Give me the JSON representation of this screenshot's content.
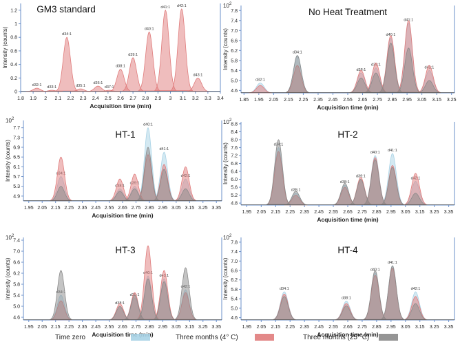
{
  "figure": {
    "legend": [
      {
        "label": "Time zero",
        "color": "#a9d3e6"
      },
      {
        "label": "Three months (4° C)",
        "color": "#e07c7c"
      },
      {
        "label": "Three months (25° C)",
        "color": "#8a8a8a"
      }
    ]
  },
  "chart_data": [
    {
      "type": "area",
      "title": "GM3 standard",
      "xlabel": "Acquisition time (min)",
      "ylabel": "Intensity (counts)",
      "yexp": "",
      "xlim": [
        1.8,
        3.4
      ],
      "ylim": [
        0,
        1.3
      ],
      "xticks": [
        "1.8",
        "1.9",
        "2",
        "2.1",
        "2.2",
        "2.3",
        "2.4",
        "2.5",
        "2.6",
        "2.7",
        "2.8",
        "2.9",
        "3",
        "3.1",
        "3.2",
        "3.3",
        "3.4"
      ],
      "yticks": [
        "0",
        "0.2",
        "0.4",
        "0.6",
        "0.8",
        "1",
        "1.2"
      ],
      "series": [
        {
          "name": "GM3 standard",
          "color": "#e07c7c",
          "peaks": [
            {
              "label": "d32:1",
              "x": 1.93,
              "y": 0.05
            },
            {
              "label": "d33:1",
              "x": 2.05,
              "y": 0.02
            },
            {
              "label": "d34:1",
              "x": 2.17,
              "y": 0.8
            },
            {
              "label": "d35:1",
              "x": 2.28,
              "y": 0.04
            },
            {
              "label": "d36:1",
              "x": 2.42,
              "y": 0.08
            },
            {
              "label": "d37:1",
              "x": 2.51,
              "y": 0.02
            },
            {
              "label": "d38:1",
              "x": 2.6,
              "y": 0.33
            },
            {
              "label": "d39:1",
              "x": 2.7,
              "y": 0.5
            },
            {
              "label": "d40:1",
              "x": 2.83,
              "y": 0.88
            },
            {
              "label": "d41:1",
              "x": 2.96,
              "y": 1.2
            },
            {
              "label": "d42:1",
              "x": 3.09,
              "y": 1.22
            },
            {
              "label": "d43:1",
              "x": 3.22,
              "y": 0.2
            }
          ]
        }
      ]
    },
    {
      "type": "area",
      "title": "No Heat Treatment",
      "xlabel": "Acquisition time (min)",
      "ylabel": "Intensity (counts)",
      "yexp": "10",
      "yexp_sup": "2",
      "xlim": [
        1.83,
        3.27
      ],
      "ylim": [
        4.5,
        8.0
      ],
      "xticks": [
        "1.85",
        "1.95",
        "2.05",
        "2.15",
        "2.25",
        "2.35",
        "2.45",
        "2.55",
        "2.65",
        "2.75",
        "2.85",
        "2.95",
        "3.05",
        "3.15",
        "3.25"
      ],
      "yticks": [
        "4.6",
        "5.0",
        "5.4",
        "5.8",
        "6.2",
        "6.6",
        "7.0",
        "7.4",
        "7.8"
      ],
      "series": [
        {
          "name": "Time zero",
          "color": "#a9d3e6",
          "peaks": [
            {
              "label": "d32:1",
              "x": 1.96,
              "y": 4.9
            },
            {
              "label": "d34:1",
              "x": 2.21,
              "y": 6.0
            },
            {
              "label": "d38:1",
              "x": 2.64,
              "y": 5.3
            },
            {
              "label": "d39:1",
              "x": 2.74,
              "y": 5.5
            },
            {
              "label": "d40:1",
              "x": 2.84,
              "y": 6.7
            },
            {
              "label": "d41:1",
              "x": 2.96,
              "y": 7.3
            },
            {
              "label": "d42:1",
              "x": 3.1,
              "y": 5.4
            }
          ]
        },
        {
          "name": "Three months (4° C)",
          "color": "#e07c7c",
          "peaks": [
            {
              "label": "",
              "x": 1.96,
              "y": 4.8
            },
            {
              "label": "",
              "x": 2.21,
              "y": 5.6
            },
            {
              "label": "",
              "x": 2.64,
              "y": 5.4
            },
            {
              "label": "",
              "x": 2.74,
              "y": 5.7
            },
            {
              "label": "",
              "x": 2.84,
              "y": 6.8
            },
            {
              "label": "",
              "x": 2.96,
              "y": 7.4
            },
            {
              "label": "",
              "x": 3.1,
              "y": 5.6
            }
          ]
        },
        {
          "name": "Three months (25° C)",
          "color": "#8a8a8a",
          "peaks": [
            {
              "label": "",
              "x": 2.21,
              "y": 6.0
            },
            {
              "label": "",
              "x": 2.64,
              "y": 5.1
            },
            {
              "label": "",
              "x": 2.74,
              "y": 5.3
            },
            {
              "label": "",
              "x": 2.84,
              "y": 6.5
            },
            {
              "label": "",
              "x": 2.96,
              "y": 6.3
            },
            {
              "label": "",
              "x": 3.1,
              "y": 5.0
            }
          ]
        }
      ]
    },
    {
      "type": "area",
      "title": "HT-1",
      "xlabel": "Acquisition time (min)",
      "ylabel": "Intensity (counts)",
      "yexp": "10",
      "yexp_sup": "2",
      "xlim": [
        1.91,
        3.39
      ],
      "ylim": [
        4.7,
        8.0
      ],
      "xticks": [
        "1.95",
        "2.05",
        "2.15",
        "2.25",
        "2.35",
        "2.45",
        "2.55",
        "2.65",
        "2.75",
        "2.85",
        "2.95",
        "3.05",
        "3.15",
        "3.25",
        "3.35"
      ],
      "yticks": [
        "4.9",
        "5.3",
        "5.7",
        "6.1",
        "6.5",
        "6.9",
        "7.3",
        "7.7"
      ],
      "series": [
        {
          "name": "Time zero",
          "color": "#a9d3e6",
          "peaks": [
            {
              "label": "d34:1",
              "x": 2.19,
              "y": 5.7
            },
            {
              "label": "d38:1",
              "x": 2.63,
              "y": 5.2
            },
            {
              "label": "d39:1",
              "x": 2.74,
              "y": 5.3
            },
            {
              "label": "d40:1",
              "x": 2.84,
              "y": 7.7
            },
            {
              "label": "d41:1",
              "x": 2.96,
              "y": 6.7
            },
            {
              "label": "d42:1",
              "x": 3.12,
              "y": 5.6
            }
          ]
        },
        {
          "name": "Three months (4° C)",
          "color": "#e07c7c",
          "peaks": [
            {
              "label": "",
              "x": 2.19,
              "y": 6.5
            },
            {
              "label": "",
              "x": 2.63,
              "y": 5.6
            },
            {
              "label": "",
              "x": 2.74,
              "y": 5.8
            },
            {
              "label": "",
              "x": 2.84,
              "y": 6.6
            },
            {
              "label": "",
              "x": 2.96,
              "y": 6.2
            },
            {
              "label": "",
              "x": 3.12,
              "y": 6.1
            }
          ]
        },
        {
          "name": "Three months (25° C)",
          "color": "#8a8a8a",
          "peaks": [
            {
              "label": "",
              "x": 2.19,
              "y": 5.3
            },
            {
              "label": "",
              "x": 2.63,
              "y": 5.1
            },
            {
              "label": "",
              "x": 2.74,
              "y": 5.2
            },
            {
              "label": "",
              "x": 2.84,
              "y": 6.9
            },
            {
              "label": "",
              "x": 2.96,
              "y": 6.0
            },
            {
              "label": "",
              "x": 3.12,
              "y": 5.2
            }
          ]
        }
      ]
    },
    {
      "type": "area",
      "title": "HT-2",
      "xlabel": "Acquisition time (min)",
      "ylabel": "Intensity (counts)",
      "yexp": "10",
      "yexp_sup": "2",
      "xlim": [
        1.91,
        3.39
      ],
      "ylim": [
        4.7,
        8.9
      ],
      "xticks": [
        "1.95",
        "2.05",
        "2.15",
        "2.25",
        "2.35",
        "2.45",
        "2.55",
        "2.65",
        "2.75",
        "2.85",
        "2.95",
        "3.05",
        "3.15",
        "3.25",
        "3.35"
      ],
      "yticks": [
        "4.8",
        "5.2",
        "5.6",
        "6.0",
        "6.4",
        "6.8",
        "7.2",
        "7.6",
        "8.0",
        "8.4",
        "8.8"
      ],
      "series": [
        {
          "name": "Time zero",
          "color": "#a9d3e6",
          "peaks": [
            {
              "label": "d34:1",
              "x": 2.17,
              "y": 7.6
            },
            {
              "label": "d35:1",
              "x": 2.29,
              "y": 5.3
            },
            {
              "label": "d38:1",
              "x": 2.63,
              "y": 5.7
            },
            {
              "label": "d39:1",
              "x": 2.74,
              "y": 6.0
            },
            {
              "label": "d40:1",
              "x": 2.84,
              "y": 7.2
            },
            {
              "label": "d41:1",
              "x": 2.96,
              "y": 7.3
            },
            {
              "label": "d42:1",
              "x": 3.12,
              "y": 5.9
            }
          ]
        },
        {
          "name": "Three months (4° C)",
          "color": "#e07c7c",
          "peaks": [
            {
              "label": "",
              "x": 2.17,
              "y": 7.4
            },
            {
              "label": "",
              "x": 2.29,
              "y": 5.2
            },
            {
              "label": "",
              "x": 2.63,
              "y": 5.6
            },
            {
              "label": "",
              "x": 2.74,
              "y": 6.1
            },
            {
              "label": "",
              "x": 2.84,
              "y": 7.1
            },
            {
              "label": "",
              "x": 2.96,
              "y": 6.7
            },
            {
              "label": "",
              "x": 3.12,
              "y": 6.3
            }
          ]
        },
        {
          "name": "Three months (25° C)",
          "color": "#8a8a8a",
          "peaks": [
            {
              "label": "",
              "x": 2.17,
              "y": 8.0
            },
            {
              "label": "",
              "x": 2.29,
              "y": 5.4
            },
            {
              "label": "",
              "x": 2.63,
              "y": 5.8
            },
            {
              "label": "",
              "x": 2.74,
              "y": 6.0
            },
            {
              "label": "",
              "x": 2.84,
              "y": 7.0
            },
            {
              "label": "",
              "x": 2.96,
              "y": 6.6
            },
            {
              "label": "",
              "x": 3.12,
              "y": 5.3
            }
          ]
        }
      ]
    },
    {
      "type": "area",
      "title": "HT-3",
      "xlabel": "Acquisition time (min)",
      "ylabel": "Intensity (counts)",
      "yexp": "10",
      "yexp_sup": "2",
      "xlim": [
        1.91,
        3.39
      ],
      "ylim": [
        4.5,
        7.5
      ],
      "xticks": [
        "1.95",
        "2.05",
        "2.15",
        "2.25",
        "2.35",
        "2.45",
        "2.55",
        "2.65",
        "2.75",
        "2.85",
        "2.95",
        "3.05",
        "3.15",
        "3.25",
        "3.35"
      ],
      "yticks": [
        "4.6",
        "5.0",
        "5.4",
        "5.8",
        "6.2",
        "6.6",
        "7.0",
        "7.4"
      ],
      "series": [
        {
          "name": "Time zero",
          "color": "#a9d3e6",
          "peaks": [
            {
              "label": "d34:1",
              "x": 2.19,
              "y": 5.4
            },
            {
              "label": "d38:1",
              "x": 2.63,
              "y": 5.0
            },
            {
              "label": "d39:1",
              "x": 2.74,
              "y": 5.3
            },
            {
              "label": "d40:1",
              "x": 2.84,
              "y": 6.1
            },
            {
              "label": "d41:1",
              "x": 2.96,
              "y": 6.0
            },
            {
              "label": "d42:1",
              "x": 3.12,
              "y": 5.6
            }
          ]
        },
        {
          "name": "Three months (4° C)",
          "color": "#e07c7c",
          "peaks": [
            {
              "label": "",
              "x": 2.19,
              "y": 5.2
            },
            {
              "label": "",
              "x": 2.63,
              "y": 5.1
            },
            {
              "label": "",
              "x": 2.74,
              "y": 5.5
            },
            {
              "label": "",
              "x": 2.84,
              "y": 7.2
            },
            {
              "label": "",
              "x": 2.96,
              "y": 6.3
            },
            {
              "label": "",
              "x": 3.12,
              "y": 5.5
            }
          ]
        },
        {
          "name": "Three months (25° C)",
          "color": "#8a8a8a",
          "peaks": [
            {
              "label": "",
              "x": 2.19,
              "y": 6.3
            },
            {
              "label": "",
              "x": 2.63,
              "y": 5.0
            },
            {
              "label": "",
              "x": 2.74,
              "y": 5.4
            },
            {
              "label": "",
              "x": 2.84,
              "y": 6.0
            },
            {
              "label": "",
              "x": 2.96,
              "y": 5.9
            },
            {
              "label": "",
              "x": 3.12,
              "y": 6.4
            }
          ]
        }
      ]
    },
    {
      "type": "area",
      "title": "HT-4",
      "xlabel": "Acquisition time (min)",
      "ylabel": "Intensity (counts)",
      "yexp": "10",
      "yexp_sup": "2",
      "xlim": [
        1.91,
        3.39
      ],
      "ylim": [
        4.5,
        8.0
      ],
      "xticks": [
        "1.95",
        "2.05",
        "2.15",
        "2.25",
        "2.35",
        "2.45",
        "2.55",
        "2.65",
        "2.75",
        "2.85",
        "2.95",
        "3.05",
        "3.15",
        "3.25",
        "3.35"
      ],
      "yticks": [
        "4.6",
        "5.0",
        "5.4",
        "5.8",
        "6.2",
        "6.6",
        "7.0",
        "7.4",
        "7.8"
      ],
      "series": [
        {
          "name": "Time zero",
          "color": "#a9d3e6",
          "peaks": [
            {
              "label": "d34:1",
              "x": 2.21,
              "y": 5.7
            },
            {
              "label": "d38:1",
              "x": 2.64,
              "y": 5.3
            },
            {
              "label": "d40:1",
              "x": 2.84,
              "y": 6.5
            },
            {
              "label": "d41:1",
              "x": 2.96,
              "y": 6.8
            },
            {
              "label": "d42:1",
              "x": 3.12,
              "y": 5.7
            }
          ]
        },
        {
          "name": "Three months (4° C)",
          "color": "#e07c7c",
          "peaks": [
            {
              "label": "",
              "x": 2.21,
              "y": 5.6
            },
            {
              "label": "",
              "x": 2.64,
              "y": 5.2
            },
            {
              "label": "",
              "x": 2.84,
              "y": 6.4
            },
            {
              "label": "",
              "x": 2.96,
              "y": 6.7
            },
            {
              "label": "",
              "x": 3.12,
              "y": 5.5
            }
          ]
        },
        {
          "name": "Three months (25° C)",
          "color": "#8a8a8a",
          "peaks": [
            {
              "label": "",
              "x": 2.21,
              "y": 5.5
            },
            {
              "label": "",
              "x": 2.64,
              "y": 5.1
            },
            {
              "label": "",
              "x": 2.84,
              "y": 6.6
            },
            {
              "label": "",
              "x": 2.96,
              "y": 6.8
            },
            {
              "label": "",
              "x": 3.12,
              "y": 5.2
            }
          ]
        }
      ]
    }
  ]
}
